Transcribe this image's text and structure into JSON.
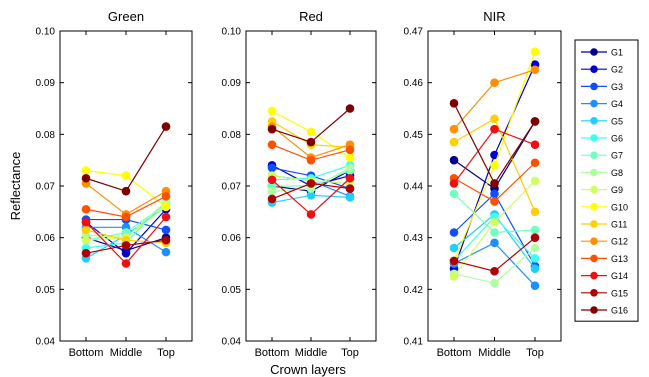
{
  "chart_data": [
    {
      "type": "line",
      "title": "Green",
      "categories": [
        "Bottom",
        "Middle",
        "Top"
      ],
      "ylim": [
        0.04,
        0.1
      ],
      "yticks": [
        "0.04",
        "0.05",
        "0.06",
        "0.07",
        "0.08",
        "0.09",
        "0.10"
      ],
      "ylabel": "Reflectance",
      "grid": false,
      "series": [
        {
          "name": "G1",
          "values": [
            0.06,
            0.0575,
            0.06
          ]
        },
        {
          "name": "G2",
          "values": [
            0.063,
            0.057,
            0.0655
          ]
        },
        {
          "name": "G3",
          "values": [
            0.0635,
            0.0635,
            0.0615
          ]
        },
        {
          "name": "G4",
          "values": [
            0.062,
            0.062,
            0.0572
          ]
        },
        {
          "name": "G5",
          "values": [
            0.056,
            0.0605,
            0.066
          ]
        },
        {
          "name": "G6",
          "values": [
            0.058,
            0.059,
            0.067
          ]
        },
        {
          "name": "G7",
          "values": [
            0.0595,
            0.061,
            0.0665
          ]
        },
        {
          "name": "G8",
          "values": [
            0.0605,
            0.06,
            0.067
          ]
        },
        {
          "name": "G9",
          "values": [
            0.0595,
            0.06,
            0.066
          ]
        },
        {
          "name": "G10",
          "values": [
            0.073,
            0.072,
            0.066
          ]
        },
        {
          "name": "G11",
          "values": [
            0.0615,
            0.0595,
            0.059
          ]
        },
        {
          "name": "G12",
          "values": [
            0.0705,
            0.0645,
            0.069
          ]
        },
        {
          "name": "G13",
          "values": [
            0.0655,
            0.064,
            0.068
          ]
        },
        {
          "name": "G14",
          "values": [
            0.063,
            0.055,
            0.064
          ]
        },
        {
          "name": "G15",
          "values": [
            0.057,
            0.0585,
            0.0595
          ]
        },
        {
          "name": "G16",
          "values": [
            0.0715,
            0.069,
            0.0815
          ]
        }
      ]
    },
    {
      "type": "line",
      "title": "Red",
      "categories": [
        "Bottom",
        "Middle",
        "Top"
      ],
      "ylim": [
        0.04,
        0.1
      ],
      "yticks": [
        "0.04",
        "0.05",
        "0.06",
        "0.07",
        "0.08",
        "0.09",
        "0.10"
      ],
      "grid": false,
      "series": [
        {
          "name": "G1",
          "values": [
            0.07,
            0.069,
            0.073
          ]
        },
        {
          "name": "G2",
          "values": [
            0.074,
            0.07,
            0.072
          ]
        },
        {
          "name": "G3",
          "values": [
            0.0735,
            0.072,
            0.0695
          ]
        },
        {
          "name": "G4",
          "values": [
            0.072,
            0.071,
            0.068
          ]
        },
        {
          "name": "G5",
          "values": [
            0.0668,
            0.0682,
            0.0678
          ]
        },
        {
          "name": "G6",
          "values": [
            0.0712,
            0.0715,
            0.074
          ]
        },
        {
          "name": "G7",
          "values": [
            0.07,
            0.07,
            0.073
          ]
        },
        {
          "name": "G8",
          "values": [
            0.069,
            0.0695,
            0.0735
          ]
        },
        {
          "name": "G9",
          "values": [
            0.072,
            0.071,
            0.0705
          ]
        },
        {
          "name": "G10",
          "values": [
            0.0845,
            0.0805,
            0.0755
          ]
        },
        {
          "name": "G11",
          "values": [
            0.0825,
            0.078,
            0.0775
          ]
        },
        {
          "name": "G12",
          "values": [
            0.0815,
            0.0755,
            0.078
          ]
        },
        {
          "name": "G13",
          "values": [
            0.078,
            0.075,
            0.077
          ]
        },
        {
          "name": "G14",
          "values": [
            0.0712,
            0.0645,
            0.0715
          ]
        },
        {
          "name": "G15",
          "values": [
            0.0675,
            0.0705,
            0.0695
          ]
        },
        {
          "name": "G16",
          "values": [
            0.081,
            0.0785,
            0.085
          ]
        }
      ]
    },
    {
      "type": "line",
      "title": "NIR",
      "categories": [
        "Bottom",
        "Middle",
        "Top"
      ],
      "ylim": [
        0.41,
        0.47
      ],
      "yticks": [
        "0.41",
        "0.42",
        "0.43",
        "0.44",
        "0.45",
        "0.46",
        "0.47"
      ],
      "grid": false,
      "series": [
        {
          "name": "G1",
          "values": [
            0.445,
            0.4395,
            0.4525
          ]
        },
        {
          "name": "G2",
          "values": [
            0.424,
            0.446,
            0.4635
          ]
        },
        {
          "name": "G3",
          "values": [
            0.431,
            0.4385,
            0.4245
          ]
        },
        {
          "name": "G4",
          "values": [
            0.425,
            0.429,
            0.4207
          ]
        },
        {
          "name": "G5",
          "values": [
            0.428,
            0.4345,
            0.424
          ]
        },
        {
          "name": "G6",
          "values": [
            0.4255,
            0.434,
            0.426
          ]
        },
        {
          "name": "G7",
          "values": [
            0.4385,
            0.431,
            0.4315
          ]
        },
        {
          "name": "G8",
          "values": [
            0.423,
            0.4212,
            0.428
          ]
        },
        {
          "name": "G9",
          "values": [
            0.4225,
            0.433,
            0.441
          ]
        },
        {
          "name": "G10",
          "values": [
            0.4255,
            0.444,
            0.466
          ]
        },
        {
          "name": "G11",
          "values": [
            0.4485,
            0.453,
            0.435
          ]
        },
        {
          "name": "G12",
          "values": [
            0.451,
            0.46,
            0.4625
          ]
        },
        {
          "name": "G13",
          "values": [
            0.4415,
            0.437,
            0.4445
          ]
        },
        {
          "name": "G14",
          "values": [
            0.4405,
            0.451,
            0.448
          ]
        },
        {
          "name": "G15",
          "values": [
            0.4255,
            0.4235,
            0.43
          ]
        },
        {
          "name": "G16",
          "values": [
            0.456,
            0.4405,
            0.4525
          ]
        }
      ]
    }
  ],
  "xlabel": "Crown layers",
  "legend": {
    "placement": "right",
    "entries": [
      "G1",
      "G2",
      "G3",
      "G4",
      "G5",
      "G6",
      "G7",
      "G8",
      "G9",
      "G10",
      "G11",
      "G12",
      "G13",
      "G14",
      "G15",
      "G16"
    ]
  },
  "colors": [
    "#00008f",
    "#0000cf",
    "#0f4fff",
    "#1f8fff",
    "#1fcfff",
    "#3fffef",
    "#6fffbf",
    "#afffa0",
    "#cfff60",
    "#ffff00",
    "#ffcf00",
    "#ff8f00",
    "#ff5000",
    "#ef0f0f",
    "#af0000",
    "#7f0000"
  ]
}
